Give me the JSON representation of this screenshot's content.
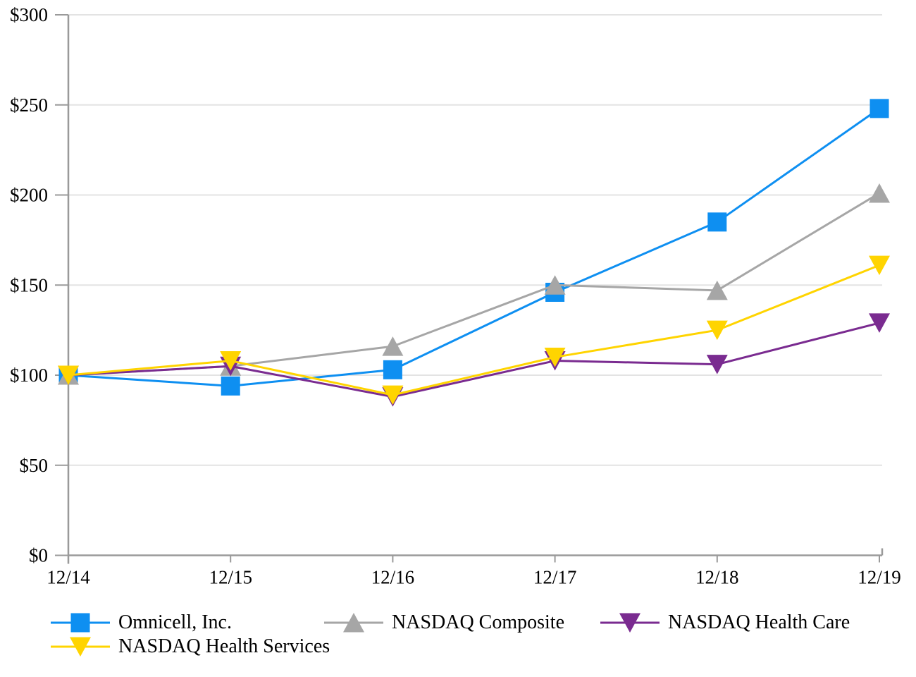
{
  "chart_data": {
    "type": "line",
    "title": "",
    "xlabel": "",
    "ylabel": "",
    "x_categories": [
      "12/14",
      "12/15",
      "12/16",
      "12/17",
      "12/18",
      "12/19"
    ],
    "y_ticks": [
      {
        "label": "$0",
        "value": 0
      },
      {
        "label": "$50",
        "value": 50
      },
      {
        "label": "$100",
        "value": 100
      },
      {
        "label": "$150",
        "value": 150
      },
      {
        "label": "$200",
        "value": 200
      },
      {
        "label": "$250",
        "value": 250
      },
      {
        "label": "$300",
        "value": 300
      }
    ],
    "ylim": [
      0,
      300
    ],
    "grid": "horizontal-only",
    "legend_position": "bottom",
    "series": [
      {
        "name": "Omnicell, Inc.",
        "color": "#0E8FF1",
        "marker": "square",
        "values": [
          100,
          94,
          103,
          146,
          185,
          248
        ]
      },
      {
        "name": "NASDAQ Composite",
        "color": "#A6A6A6",
        "marker": "triangle-up",
        "values": [
          100,
          105,
          116,
          150,
          147,
          201
        ]
      },
      {
        "name": "NASDAQ Health Care",
        "color": "#7A2B90",
        "marker": "triangle-down",
        "values": [
          100,
          105,
          88,
          108,
          106,
          129
        ]
      },
      {
        "name": "NASDAQ Health Services",
        "color": "#FFD400",
        "marker": "triangle-down",
        "values": [
          100,
          108,
          89,
          110,
          125,
          161
        ]
      }
    ],
    "style": {
      "axis_color": "#9A9A9A",
      "grid_color": "#E3E3E3",
      "text_color": "#000000"
    }
  },
  "legend": {
    "rows": [
      [
        0,
        1,
        2
      ],
      [
        3
      ]
    ]
  }
}
